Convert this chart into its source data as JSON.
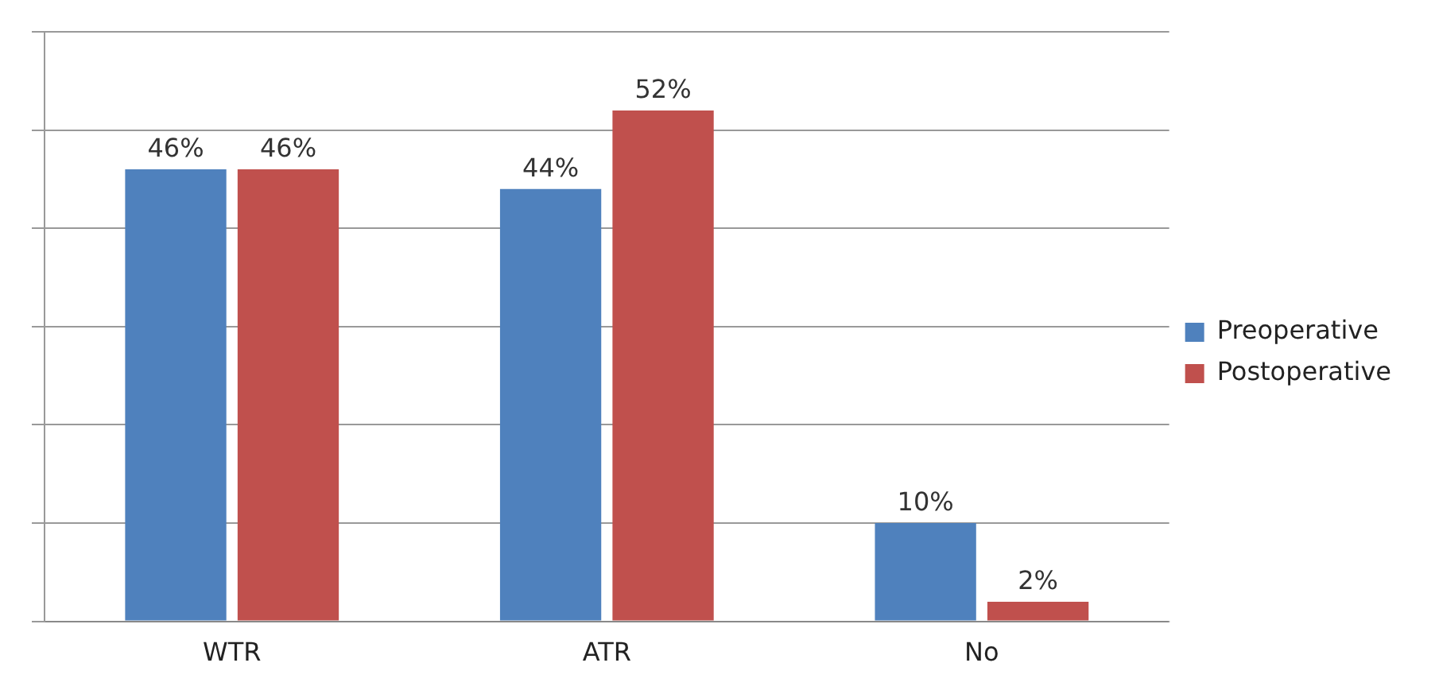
{
  "chart_data": {
    "type": "bar",
    "categories": [
      "WTR",
      "ATR",
      "No"
    ],
    "series": [
      {
        "name": "Preoperative",
        "color": "#4f81bd",
        "values": [
          46,
          44,
          10
        ],
        "value_labels": [
          "46%",
          "44%",
          "10%"
        ]
      },
      {
        "name": "Postoperative",
        "color": "#c0504d",
        "values": [
          46,
          52,
          2
        ],
        "value_labels": [
          "46%",
          "52%",
          "2%"
        ]
      }
    ],
    "ylim": [
      0,
      60
    ],
    "yticks": [
      {
        "value": 0,
        "label": null
      },
      {
        "value": 10,
        "label": null
      },
      {
        "value": 20,
        "label": null
      },
      {
        "value": 30,
        "label": null
      },
      {
        "value": 40,
        "label": null
      },
      {
        "value": 50,
        "label": null
      },
      {
        "value": 60,
        "label": null
      }
    ],
    "grid": "y",
    "legend": "right",
    "tick_labels": "x"
  }
}
